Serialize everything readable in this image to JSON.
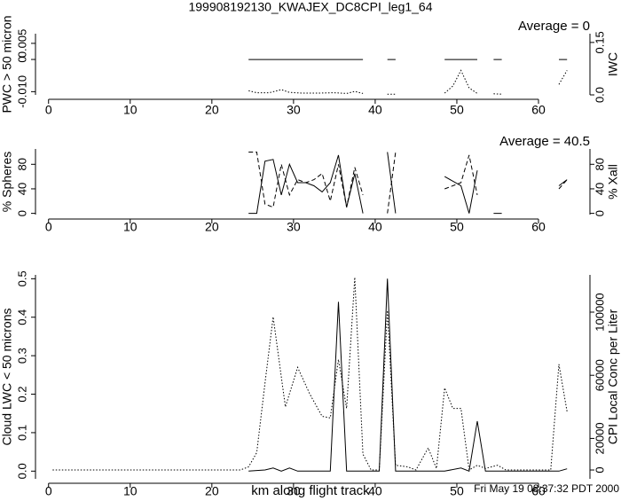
{
  "chart_data": [
    {
      "type": "line",
      "title": "199908192130_KWAJEX_DC8CPI_leg1_64",
      "annotation": "Average = 0",
      "ylabel": "PWC > 50 micron",
      "y2label": "IWC",
      "xlim": [
        -1.6,
        66.3
      ],
      "xticks": [
        0,
        10,
        20,
        30,
        40,
        50,
        60
      ],
      "ylim": [
        -0.011,
        0.008
      ],
      "yticks": [
        {
          "value": -0.01,
          "label": "-0.010"
        },
        0,
        0.005
      ],
      "y2lim": [
        0,
        0.175
      ],
      "y2ticks": [
        {
          "value": 0,
          "label": "0.0"
        },
        0.15
      ],
      "series": [
        {
          "style": "solid",
          "color": "#000000",
          "x": [
            24.5,
            38.5,
            null,
            41.5,
            42.5,
            null,
            48.5,
            52.5,
            null,
            54.5,
            55.5,
            null,
            62.5,
            63.5
          ],
          "values": [
            0,
            0,
            null,
            0,
            0,
            null,
            0,
            0,
            null,
            0,
            0,
            null,
            0,
            0
          ]
        },
        {
          "style": "dotted",
          "color": "#000000",
          "axis": "y2",
          "x": [
            24.5,
            25.5,
            27,
            28.5,
            29.5,
            31,
            33,
            35,
            36.5,
            37.5,
            38.5,
            null,
            41.5,
            42.5,
            null,
            48.5,
            49.5,
            50.5,
            51.5,
            52.5,
            null,
            54.5,
            55.5,
            null,
            62.5,
            63.5
          ],
          "values": [
            0.012,
            0.006,
            0.006,
            0.015,
            0.007,
            0.005,
            0.005,
            0.006,
            0.004,
            0.01,
            0.004,
            null,
            0.002,
            0.002,
            null,
            0.005,
            0.025,
            0.07,
            0.02,
            0.004,
            null,
            0.003,
            0.002,
            null,
            0.03,
            0.07
          ]
        }
      ]
    },
    {
      "type": "line",
      "annotation": "Average = 40.5",
      "ylabel": "% Spheres",
      "y2label": "% Xall",
      "xlim": [
        -1.6,
        66.3
      ],
      "xticks": [
        0,
        10,
        20,
        30,
        40,
        50,
        60
      ],
      "ylim": [
        -2,
        105
      ],
      "yticks": [
        0,
        40,
        80
      ],
      "y2lim": [
        -2,
        105
      ],
      "y2ticks": [
        0,
        40,
        80
      ],
      "series": [
        {
          "style": "solid",
          "color": "#000000",
          "x": [
            24.5,
            25.5,
            26.5,
            27.5,
            28.5,
            29.5,
            30.5,
            31.5,
            32.5,
            33.5,
            34.5,
            35.5,
            36.5,
            37.5,
            38.5,
            null,
            41.5,
            42.5,
            null,
            48.5,
            50.5,
            51.5,
            52.5,
            null,
            54.5,
            55.5,
            null,
            62.5,
            63.5
          ],
          "values": [
            0,
            0,
            85,
            88,
            30,
            80,
            50,
            50,
            45,
            35,
            50,
            95,
            10,
            65,
            0,
            null,
            100,
            0,
            null,
            60,
            45,
            0,
            70,
            null,
            0,
            0,
            null,
            45,
            55
          ]
        },
        {
          "style": "dashed",
          "color": "#000000",
          "axis": "y2",
          "x": [
            24.5,
            25.5,
            26.5,
            27.5,
            28.5,
            29.5,
            30.5,
            31.5,
            32.5,
            33.5,
            34.5,
            35.5,
            36.5,
            37.5,
            38.5,
            null,
            41.5,
            42.5,
            null,
            48.5,
            50.5,
            51.5,
            52.5,
            null,
            62.5,
            63.5
          ],
          "values": [
            100,
            100,
            15,
            10,
            80,
            30,
            55,
            50,
            55,
            65,
            20,
            80,
            10,
            75,
            30,
            null,
            0,
            100,
            null,
            40,
            50,
            95,
            30,
            null,
            40,
            55
          ]
        }
      ]
    },
    {
      "type": "line",
      "xlabel": "km along flight track",
      "annotation": "Fri May 19 08:37:32 PDT 2000",
      "ylabel": "Cloud LWC < 50 microns",
      "y2label": "CPI Local Conc per Liter",
      "xlim": [
        -1.6,
        66.3
      ],
      "xticks": [
        0,
        10,
        20,
        30,
        40,
        50,
        60
      ],
      "ylim": [
        -0.02,
        0.51
      ],
      "yticks": [
        {
          "value": 0,
          "label": "0.0"
        },
        0.1,
        0.2,
        0.3,
        0.4,
        0.5
      ],
      "y2lim": [
        -5600,
        123600
      ],
      "y2ticks": [
        0,
        20000,
        60000,
        100000
      ],
      "series": [
        {
          "style": "solid",
          "color": "#000000",
          "x": [
            24.5,
            26.5,
            27.5,
            28.5,
            29.5,
            30.5,
            31.5,
            34.5,
            35.5,
            36.5,
            40.5,
            41.5,
            42.5,
            48.5,
            50.5,
            51.5,
            52.5,
            53.5,
            62.5,
            63.5
          ],
          "values": [
            0,
            0.003,
            0.008,
            0,
            0.008,
            0,
            0,
            0,
            0.44,
            0,
            0,
            0.5,
            0,
            0,
            0.008,
            0,
            0.13,
            0,
            0,
            0.006
          ]
        },
        {
          "style": "dotted",
          "color": "#000000",
          "axis": "y2",
          "x": [
            0.5,
            23.5,
            24.5,
            25.5,
            26.5,
            27.5,
            29,
            30.5,
            32,
            33.5,
            34.5,
            35.5,
            36.5,
            37.5,
            38.5,
            39.5,
            40.5,
            41.5,
            42.5,
            44,
            45,
            46.5,
            47.5,
            48.5,
            49.5,
            50.5,
            51.5,
            52.5,
            53.5,
            55,
            56,
            61.5,
            62.5,
            63.5
          ],
          "values": [
            0,
            0,
            2000,
            11000,
            55000,
            97000,
            40000,
            65000,
            48000,
            34000,
            33000,
            70000,
            39000,
            122000,
            10000,
            0,
            0,
            101000,
            3000,
            2000,
            0,
            14000,
            1000,
            52000,
            39000,
            39000,
            0,
            3000,
            1000,
            3000,
            0,
            0,
            67000,
            37000
          ]
        }
      ]
    }
  ]
}
